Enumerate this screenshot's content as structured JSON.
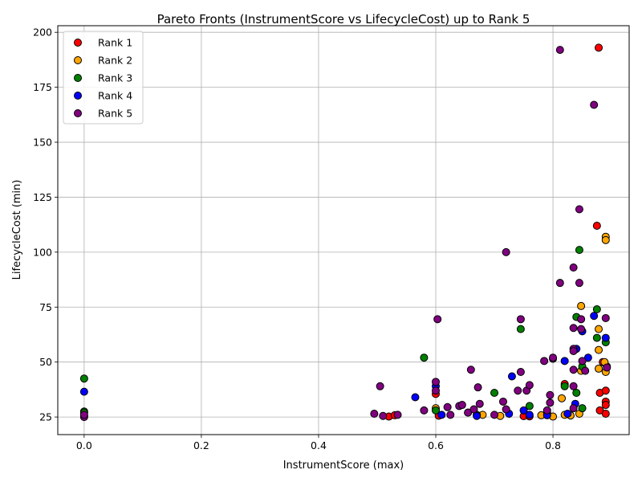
{
  "chart_data": {
    "type": "scatter",
    "title": "Pareto Fronts (InstrumentScore vs LifecycleCost) up to Rank 5",
    "xlabel": "InstrumentScore (max)",
    "ylabel": "LifecycleCost (min)",
    "xlim": [
      -0.045,
      0.93
    ],
    "ylim": [
      17,
      203
    ],
    "xticks": [
      0.0,
      0.2,
      0.4,
      0.6,
      0.8
    ],
    "xtick_labels": [
      "0.0",
      "0.2",
      "0.4",
      "0.6",
      "0.8"
    ],
    "yticks": [
      25,
      50,
      75,
      100,
      125,
      150,
      175,
      200
    ],
    "ytick_labels": [
      "25",
      "50",
      "75",
      "100",
      "125",
      "150",
      "175",
      "200"
    ],
    "grid": true,
    "legend_position": "upper-left",
    "series": [
      {
        "name": "Rank 1",
        "color": "#ff0000",
        "points": [
          [
            0.52,
            25.2
          ],
          [
            0.53,
            25.8
          ],
          [
            0.6,
            35.5
          ],
          [
            0.605,
            25.6
          ],
          [
            0.75,
            25.4
          ],
          [
            0.76,
            25.3
          ],
          [
            0.82,
            40
          ],
          [
            0.875,
            112
          ],
          [
            0.878,
            193
          ],
          [
            0.88,
            36
          ],
          [
            0.88,
            28
          ],
          [
            0.885,
            50
          ],
          [
            0.89,
            37
          ],
          [
            0.89,
            32
          ],
          [
            0.89,
            30.5
          ],
          [
            0.89,
            26.5
          ],
          [
            0.892,
            48
          ]
        ]
      },
      {
        "name": "Rank 2",
        "color": "#ffa500",
        "points": [
          [
            0.6,
            29
          ],
          [
            0.68,
            26
          ],
          [
            0.71,
            25.5
          ],
          [
            0.78,
            25.8
          ],
          [
            0.8,
            25.2
          ],
          [
            0.815,
            33.5
          ],
          [
            0.82,
            26
          ],
          [
            0.83,
            25.7
          ],
          [
            0.845,
            26.5
          ],
          [
            0.848,
            75.5
          ],
          [
            0.848,
            46
          ],
          [
            0.878,
            65
          ],
          [
            0.878,
            55.5
          ],
          [
            0.878,
            47
          ],
          [
            0.888,
            50
          ],
          [
            0.89,
            107
          ],
          [
            0.89,
            105.5
          ],
          [
            0.89,
            45.5
          ]
        ]
      },
      {
        "name": "Rank 3",
        "color": "#008000",
        "points": [
          [
            0.0,
            42.5
          ],
          [
            0.0,
            27.5
          ],
          [
            0.0,
            27
          ],
          [
            0.58,
            52
          ],
          [
            0.6,
            28
          ],
          [
            0.67,
            26
          ],
          [
            0.7,
            36
          ],
          [
            0.745,
            65
          ],
          [
            0.76,
            30
          ],
          [
            0.79,
            27
          ],
          [
            0.82,
            39
          ],
          [
            0.84,
            70.5
          ],
          [
            0.84,
            36
          ],
          [
            0.845,
            101
          ],
          [
            0.85,
            48
          ],
          [
            0.85,
            29
          ],
          [
            0.875,
            74
          ],
          [
            0.875,
            61
          ],
          [
            0.89,
            59
          ]
        ]
      },
      {
        "name": "Rank 4",
        "color": "#0000ff",
        "points": [
          [
            0.0,
            36.5
          ],
          [
            0.0,
            25.5
          ],
          [
            0.565,
            34
          ],
          [
            0.6,
            39
          ],
          [
            0.61,
            26
          ],
          [
            0.655,
            27
          ],
          [
            0.67,
            25.5
          ],
          [
            0.725,
            26.5
          ],
          [
            0.73,
            43.5
          ],
          [
            0.75,
            28
          ],
          [
            0.76,
            26
          ],
          [
            0.79,
            25.8
          ],
          [
            0.82,
            50.5
          ],
          [
            0.825,
            26.5
          ],
          [
            0.838,
            31
          ],
          [
            0.84,
            56
          ],
          [
            0.85,
            64
          ],
          [
            0.86,
            52
          ],
          [
            0.87,
            71
          ],
          [
            0.89,
            61
          ]
        ]
      },
      {
        "name": "Rank 5",
        "color": "#800080",
        "points": [
          [
            0.0,
            25
          ],
          [
            0.0,
            26
          ],
          [
            0.495,
            26.5
          ],
          [
            0.505,
            39
          ],
          [
            0.51,
            25.5
          ],
          [
            0.535,
            26
          ],
          [
            0.58,
            28
          ],
          [
            0.6,
            41
          ],
          [
            0.6,
            37
          ],
          [
            0.603,
            69.5
          ],
          [
            0.62,
            29.5
          ],
          [
            0.625,
            26
          ],
          [
            0.64,
            30
          ],
          [
            0.645,
            30.5
          ],
          [
            0.655,
            27
          ],
          [
            0.66,
            46.5
          ],
          [
            0.665,
            28.5
          ],
          [
            0.672,
            38.5
          ],
          [
            0.675,
            31
          ],
          [
            0.7,
            26
          ],
          [
            0.715,
            32
          ],
          [
            0.72,
            28.5
          ],
          [
            0.72,
            100
          ],
          [
            0.74,
            37
          ],
          [
            0.745,
            45.5
          ],
          [
            0.745,
            69.5
          ],
          [
            0.755,
            37
          ],
          [
            0.76,
            39.5
          ],
          [
            0.785,
            50.5
          ],
          [
            0.8,
            51.5
          ],
          [
            0.8,
            52
          ],
          [
            0.795,
            35
          ],
          [
            0.795,
            31.5
          ],
          [
            0.79,
            28
          ],
          [
            0.812,
            86
          ],
          [
            0.812,
            192
          ],
          [
            0.835,
            93
          ],
          [
            0.835,
            65.5
          ],
          [
            0.835,
            56
          ],
          [
            0.835,
            55
          ],
          [
            0.835,
            46.5
          ],
          [
            0.835,
            39
          ],
          [
            0.835,
            29
          ],
          [
            0.845,
            86
          ],
          [
            0.845,
            119.5
          ],
          [
            0.848,
            69.5
          ],
          [
            0.848,
            65
          ],
          [
            0.85,
            50.5
          ],
          [
            0.855,
            46
          ],
          [
            0.87,
            167
          ],
          [
            0.89,
            70
          ],
          [
            0.892,
            47.5
          ]
        ]
      }
    ]
  }
}
